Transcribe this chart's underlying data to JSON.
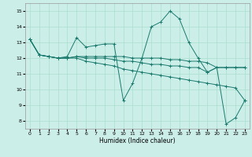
{
  "xlabel": "Humidex (Indice chaleur)",
  "bg_color": "#cceee8",
  "grid_color": "#aaddcc",
  "line_color": "#1a7a6e",
  "xlim": [
    -0.5,
    23.5
  ],
  "ylim": [
    7.5,
    15.5
  ],
  "yticks": [
    8,
    9,
    10,
    11,
    12,
    13,
    14,
    15
  ],
  "xticks": [
    0,
    1,
    2,
    3,
    4,
    5,
    6,
    7,
    8,
    9,
    10,
    11,
    12,
    13,
    14,
    15,
    16,
    17,
    18,
    19,
    20,
    21,
    22,
    23
  ],
  "series": [
    {
      "x": [
        0,
        1,
        2,
        3,
        4,
        5,
        6,
        7,
        8,
        9,
        10,
        11,
        12,
        13,
        14,
        15,
        16,
        17,
        18,
        19,
        20,
        21,
        22,
        23
      ],
      "y": [
        13.2,
        12.2,
        12.1,
        12.0,
        12.1,
        13.3,
        12.7,
        12.8,
        12.9,
        12.9,
        9.3,
        10.4,
        12.0,
        14.0,
        14.3,
        15.0,
        14.5,
        13.0,
        12.0,
        11.1,
        11.4,
        7.8,
        8.2,
        9.3
      ]
    },
    {
      "x": [
        0,
        1,
        2,
        3,
        4,
        5,
        6,
        7,
        8,
        9,
        10,
        11,
        12,
        13,
        14,
        15,
        16,
        17,
        18,
        19,
        20,
        21,
        22,
        23
      ],
      "y": [
        13.2,
        12.2,
        12.1,
        12.0,
        12.0,
        12.0,
        11.8,
        11.7,
        11.6,
        11.5,
        11.3,
        11.2,
        11.1,
        11.0,
        10.9,
        10.8,
        10.7,
        10.6,
        10.5,
        10.4,
        10.3,
        10.2,
        10.1,
        9.3
      ]
    },
    {
      "x": [
        0,
        1,
        2,
        3,
        4,
        5,
        6,
        7,
        8,
        9,
        10,
        11,
        12,
        13,
        14,
        15,
        16,
        17,
        18,
        19,
        20,
        21,
        22,
        23
      ],
      "y": [
        13.2,
        12.2,
        12.1,
        12.0,
        12.0,
        12.1,
        12.0,
        12.0,
        12.0,
        11.9,
        11.8,
        11.8,
        11.7,
        11.6,
        11.6,
        11.5,
        11.5,
        11.4,
        11.4,
        11.1,
        11.4,
        11.4,
        11.4,
        11.4
      ]
    },
    {
      "x": [
        0,
        1,
        2,
        3,
        4,
        5,
        6,
        7,
        8,
        9,
        10,
        11,
        12,
        13,
        14,
        15,
        16,
        17,
        18,
        19,
        20,
        21,
        22,
        23
      ],
      "y": [
        13.2,
        12.2,
        12.1,
        12.0,
        12.0,
        12.1,
        12.1,
        12.1,
        12.1,
        12.1,
        12.1,
        12.0,
        12.0,
        12.0,
        12.0,
        11.9,
        11.9,
        11.8,
        11.8,
        11.7,
        11.4,
        11.4,
        11.4,
        11.4
      ]
    }
  ]
}
